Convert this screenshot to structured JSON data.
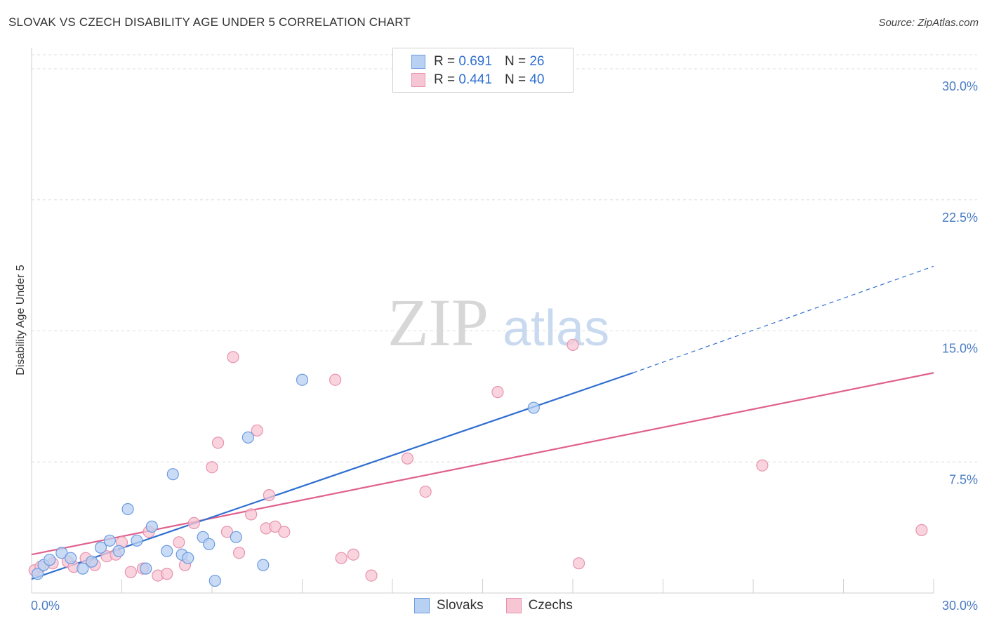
{
  "title": "SLOVAK VS CZECH DISABILITY AGE UNDER 5 CORRELATION CHART",
  "source": "Source: ZipAtlas.com",
  "watermark": {
    "zip": "ZIP",
    "atlas": "atlas"
  },
  "legend": {
    "rows": [
      {
        "r_label": "R = ",
        "r_value": "0.691",
        "n_label": "N = ",
        "n_value": "26"
      },
      {
        "r_label": "R = ",
        "r_value": "0.441",
        "n_label": "N = ",
        "n_value": "40"
      }
    ]
  },
  "bottom_legend": [
    "Slovaks",
    "Czechs"
  ],
  "colors": {
    "slovak_fill": "#b8d0f2",
    "slovak_stroke": "#6b9be0",
    "slovak_line": "#2f6fd0",
    "czech_fill": "#f7c6d4",
    "czech_stroke": "#e892ad",
    "czech_line": "#e0608e",
    "tick": "#4a7cc4",
    "grid": "#dcdcdc"
  },
  "chart_data": {
    "type": "scatter",
    "title": "SLOVAK VS CZECH DISABILITY AGE UNDER 5 CORRELATION CHART",
    "xlabel": "",
    "ylabel": "Disability Age Under 5",
    "xlim": [
      0,
      30
    ],
    "ylim": [
      0,
      30
    ],
    "x_tick_labels": [
      "0.0%",
      "30.0%"
    ],
    "y_tick_labels": [
      "7.5%",
      "15.0%",
      "22.5%",
      "30.0%"
    ],
    "y_ticks": [
      7.5,
      15.0,
      22.5,
      30.0
    ],
    "grid": true,
    "legend_position": "top-center",
    "series": [
      {
        "name": "Slovaks",
        "points": [
          [
            0.2,
            1.1
          ],
          [
            0.4,
            1.6
          ],
          [
            0.6,
            1.9
          ],
          [
            1.0,
            2.3
          ],
          [
            1.3,
            2.0
          ],
          [
            1.7,
            1.4
          ],
          [
            2.0,
            1.8
          ],
          [
            2.3,
            2.6
          ],
          [
            2.6,
            3.0
          ],
          [
            2.9,
            2.4
          ],
          [
            3.2,
            4.8
          ],
          [
            3.5,
            3.0
          ],
          [
            3.8,
            1.4
          ],
          [
            4.0,
            3.8
          ],
          [
            4.5,
            2.4
          ],
          [
            4.7,
            6.8
          ],
          [
            5.0,
            2.2
          ],
          [
            5.2,
            2.0
          ],
          [
            5.7,
            3.2
          ],
          [
            5.9,
            2.8
          ],
          [
            6.1,
            0.7
          ],
          [
            6.8,
            3.2
          ],
          [
            7.2,
            8.9
          ],
          [
            7.7,
            1.6
          ],
          [
            9.0,
            12.2
          ],
          [
            16.7,
            10.6
          ]
        ],
        "trend": {
          "x0": 0,
          "y0": 0.8,
          "x1": 20,
          "y1": 12.6,
          "dashed_to": {
            "x": 30,
            "y": 18.7
          }
        }
      },
      {
        "name": "Czechs",
        "points": [
          [
            0.1,
            1.3
          ],
          [
            0.3,
            1.5
          ],
          [
            0.7,
            1.7
          ],
          [
            1.2,
            1.8
          ],
          [
            1.4,
            1.5
          ],
          [
            1.8,
            2.0
          ],
          [
            2.1,
            1.6
          ],
          [
            2.5,
            2.1
          ],
          [
            2.8,
            2.2
          ],
          [
            3.0,
            2.9
          ],
          [
            3.3,
            1.2
          ],
          [
            3.7,
            1.4
          ],
          [
            3.9,
            3.5
          ],
          [
            4.2,
            1.0
          ],
          [
            4.5,
            1.1
          ],
          [
            4.9,
            2.9
          ],
          [
            5.1,
            1.6
          ],
          [
            5.4,
            4.0
          ],
          [
            6.0,
            7.2
          ],
          [
            6.2,
            8.6
          ],
          [
            6.5,
            3.5
          ],
          [
            6.7,
            13.5
          ],
          [
            6.9,
            2.3
          ],
          [
            7.3,
            4.5
          ],
          [
            7.5,
            9.3
          ],
          [
            7.8,
            3.7
          ],
          [
            8.1,
            3.8
          ],
          [
            8.4,
            3.5
          ],
          [
            7.9,
            5.6
          ],
          [
            10.1,
            12.2
          ],
          [
            10.3,
            2.0
          ],
          [
            10.7,
            2.2
          ],
          [
            11.3,
            1.0
          ],
          [
            12.5,
            7.7
          ],
          [
            13.1,
            5.8
          ],
          [
            15.5,
            11.5
          ],
          [
            18.0,
            14.2
          ],
          [
            18.2,
            1.7
          ],
          [
            24.3,
            7.3
          ],
          [
            29.6,
            3.6
          ]
        ],
        "trend": {
          "x0": 0,
          "y0": 2.2,
          "x1": 30,
          "y1": 12.6
        }
      }
    ]
  }
}
